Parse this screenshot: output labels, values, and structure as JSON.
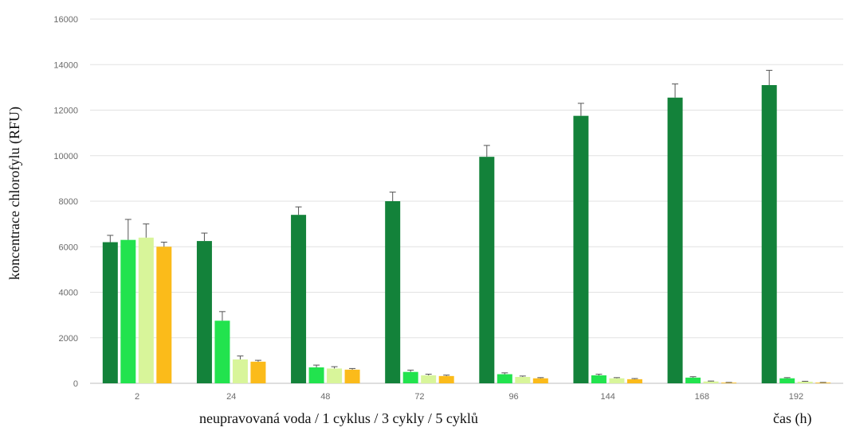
{
  "chart_data": {
    "type": "bar",
    "ylabel": "koncentrace chlorofylu (RFU)",
    "xlabel": "neupravovaná voda / 1 cyklus / 3 cykly / 5 cyklů",
    "xunit_label": "čas (h)",
    "categories": [
      "2",
      "24",
      "48",
      "72",
      "96",
      "144",
      "168",
      "192"
    ],
    "ylim": [
      0,
      16000
    ],
    "yticks": [
      0,
      2000,
      4000,
      6000,
      8000,
      10000,
      12000,
      14000,
      16000
    ],
    "grid": true,
    "legend": "none",
    "series": [
      {
        "color": "#13823a",
        "values": [
          6200,
          6250,
          7400,
          8000,
          9950,
          11750,
          12550,
          13100
        ],
        "errors": [
          300,
          350,
          350,
          400,
          500,
          550,
          600,
          650
        ]
      },
      {
        "color": "#22e34e",
        "values": [
          6300,
          2750,
          700,
          500,
          400,
          350,
          250,
          220
        ],
        "errors": [
          900,
          400,
          100,
          80,
          60,
          50,
          40,
          30
        ]
      },
      {
        "color": "#d8f59a",
        "values": [
          6400,
          1050,
          650,
          350,
          280,
          220,
          80,
          70
        ],
        "errors": [
          600,
          150,
          80,
          50,
          40,
          30,
          20,
          20
        ]
      },
      {
        "color": "#fbbb1a",
        "values": [
          6000,
          950,
          600,
          320,
          220,
          180,
          30,
          30
        ],
        "errors": [
          200,
          60,
          50,
          40,
          30,
          30,
          10,
          10
        ]
      }
    ]
  }
}
